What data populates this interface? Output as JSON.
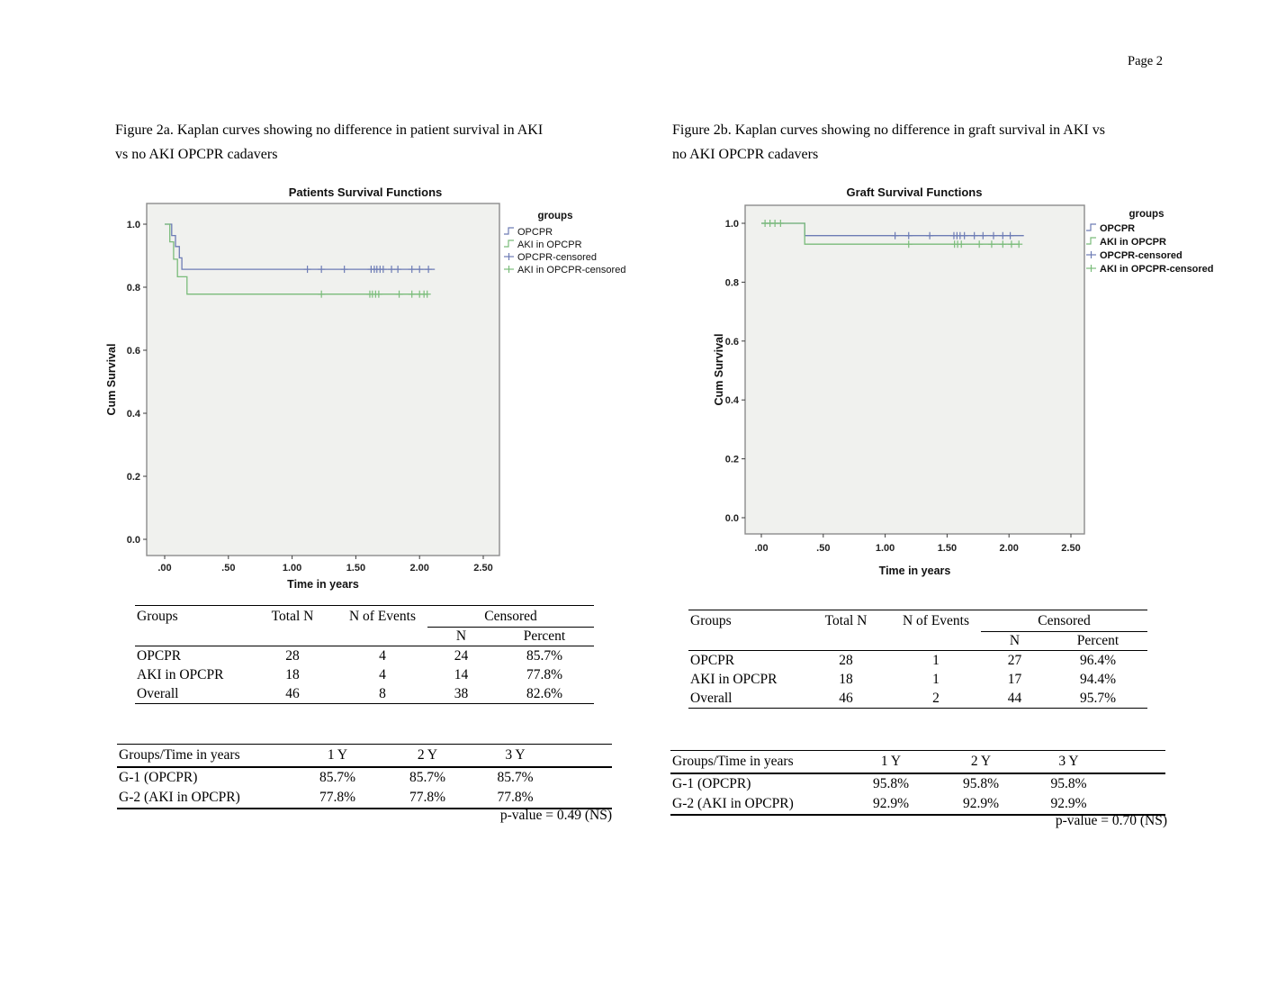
{
  "page": {
    "number_label": "Page 2"
  },
  "figures": [
    {
      "caption_line1": "Figure 2a. Kaplan curves showing no difference in patient survival in AKI",
      "caption_line2": "vs no AKI OPCPR cadavers"
    },
    {
      "caption_line1": "Figure 2b. Kaplan curves showing no difference in graft survival in AKI vs",
      "caption_line2": "no AKI OPCPR cadavers"
    }
  ],
  "colors": {
    "opcpr_line": "#6d7cb5",
    "aki_line": "#7abc7a",
    "plot_bg": "#f0f1ee",
    "plot_border": "#8c8c8c",
    "tick": "#3a3a3a"
  },
  "chart_data": [
    {
      "type": "line",
      "variant": "kaplan_meier_step",
      "title": "Patients Survival Functions",
      "xlabel": "Time in years",
      "ylabel": "Cum Survival",
      "legend_title": "groups",
      "legend_entries": [
        "OPCPR",
        "AKI in OPCPR",
        "OPCPR-censored",
        "AKI in OPCPR-censored"
      ],
      "xlim": [
        -0.15,
        2.63
      ],
      "ylim": [
        -0.05,
        1.07
      ],
      "grid": false,
      "legend_position": "right",
      "x_ticks": {
        "values": [
          0,
          0.5,
          1.0,
          1.5,
          2.0,
          2.5
        ],
        "labels": [
          ".00",
          ".50",
          "1.00",
          "1.50",
          "2.00",
          "2.50"
        ]
      },
      "y_ticks": {
        "values": [
          0,
          0.2,
          0.4,
          0.6,
          0.8,
          1.0
        ],
        "labels": [
          "0.0",
          "0.2",
          "0.4",
          "0.6",
          "0.8",
          "1.0"
        ]
      },
      "series": [
        {
          "name": "OPCPR",
          "censored_name": "OPCPR-censored",
          "color": "#6d7cb5",
          "steps": [
            [
              0,
              1
            ],
            [
              0.055,
              1
            ],
            [
              0.055,
              0.964
            ],
            [
              0.085,
              0.964
            ],
            [
              0.085,
              0.929
            ],
            [
              0.115,
              0.929
            ],
            [
              0.115,
              0.893
            ],
            [
              0.135,
              0.893
            ],
            [
              0.135,
              0.857
            ],
            [
              2.12,
              0.857
            ]
          ],
          "censored": [
            [
              1.12,
              0.857
            ],
            [
              1.23,
              0.857
            ],
            [
              1.41,
              0.857
            ],
            [
              1.62,
              0.857
            ],
            [
              1.645,
              0.857
            ],
            [
              1.665,
              0.857
            ],
            [
              1.69,
              0.857
            ],
            [
              1.715,
              0.857
            ],
            [
              1.78,
              0.857
            ],
            [
              1.83,
              0.857
            ],
            [
              1.94,
              0.857
            ],
            [
              2.0,
              0.857
            ],
            [
              2.07,
              0.857
            ]
          ]
        },
        {
          "name": "AKI in OPCPR",
          "censored_name": "AKI in OPCPR-censored",
          "color": "#7abc7a",
          "steps": [
            [
              0,
              1
            ],
            [
              0.04,
              1
            ],
            [
              0.04,
              0.944
            ],
            [
              0.07,
              0.944
            ],
            [
              0.07,
              0.889
            ],
            [
              0.1,
              0.889
            ],
            [
              0.1,
              0.833
            ],
            [
              0.175,
              0.833
            ],
            [
              0.175,
              0.778
            ],
            [
              2.06,
              0.778
            ]
          ],
          "censored": [
            [
              1.23,
              0.778
            ],
            [
              1.61,
              0.778
            ],
            [
              1.63,
              0.778
            ],
            [
              1.655,
              0.778
            ],
            [
              1.68,
              0.778
            ],
            [
              1.84,
              0.778
            ],
            [
              1.94,
              0.778
            ],
            [
              2.0,
              0.778
            ],
            [
              2.035,
              0.778
            ],
            [
              2.06,
              0.778
            ]
          ]
        }
      ]
    },
    {
      "type": "line",
      "variant": "kaplan_meier_step",
      "title": "Graft Survival Functions",
      "xlabel": "Time in years",
      "ylabel": "Cum Survival",
      "legend_title": "groups",
      "legend_entries": [
        "OPCPR",
        "AKI in OPCPR",
        "OPCPR-censored",
        "AKI in OPCPR-censored"
      ],
      "xlim": [
        -0.15,
        2.61
      ],
      "ylim": [
        -0.05,
        1.07
      ],
      "grid": false,
      "legend_position": "right",
      "x_ticks": {
        "values": [
          0,
          0.5,
          1.0,
          1.5,
          2.0,
          2.5
        ],
        "labels": [
          ".00",
          ".50",
          "1.00",
          "1.50",
          "2.00",
          "2.50"
        ]
      },
      "y_ticks": {
        "values": [
          0,
          0.2,
          0.4,
          0.6,
          0.8,
          1.0
        ],
        "labels": [
          "0.0",
          "0.2",
          "0.4",
          "0.6",
          "0.8",
          "1.0"
        ]
      },
      "series": [
        {
          "name": "OPCPR",
          "censored_name": "OPCPR-censored",
          "color": "#6d7cb5",
          "steps": [
            [
              0,
              1
            ],
            [
              0.35,
              1
            ],
            [
              0.35,
              0.958
            ],
            [
              2.12,
              0.958
            ]
          ],
          "censored": [
            [
              1.08,
              0.958
            ],
            [
              1.19,
              0.958
            ],
            [
              1.36,
              0.958
            ],
            [
              1.555,
              0.958
            ],
            [
              1.58,
              0.958
            ],
            [
              1.605,
              0.958
            ],
            [
              1.64,
              0.958
            ],
            [
              1.72,
              0.958
            ],
            [
              1.79,
              0.958
            ],
            [
              1.875,
              0.958
            ],
            [
              1.95,
              0.958
            ],
            [
              2.01,
              0.958
            ]
          ]
        },
        {
          "name": "AKI in OPCPR",
          "censored_name": "AKI in OPCPR-censored",
          "color": "#7abc7a",
          "steps": [
            [
              0,
              1
            ],
            [
              0.35,
              1
            ],
            [
              0.35,
              0.929
            ],
            [
              2.08,
              0.929
            ]
          ],
          "censored": [
            [
              0.03,
              1
            ],
            [
              0.07,
              1
            ],
            [
              0.11,
              1
            ],
            [
              0.155,
              1
            ],
            [
              1.19,
              0.929
            ],
            [
              1.56,
              0.929
            ],
            [
              1.585,
              0.929
            ],
            [
              1.615,
              0.929
            ],
            [
              1.76,
              0.929
            ],
            [
              1.86,
              0.929
            ],
            [
              1.95,
              0.929
            ],
            [
              2.02,
              0.929
            ],
            [
              2.08,
              0.929
            ]
          ]
        }
      ]
    }
  ],
  "tables": {
    "summary_headers": {
      "groups": "Groups",
      "total_n": "Total N",
      "n_of_events": "N of Events",
      "censored": "Censored",
      "n": "N",
      "percent": "Percent"
    },
    "patient_summary": {
      "rows": [
        [
          "OPCPR",
          "28",
          "4",
          "24",
          "85.7%"
        ],
        [
          "AKI in OPCPR",
          "18",
          "4",
          "14",
          "77.8%"
        ],
        [
          "Overall",
          "46",
          "8",
          "38",
          "82.6%"
        ]
      ]
    },
    "graft_summary": {
      "rows": [
        [
          "OPCPR",
          "28",
          "1",
          "27",
          "96.4%"
        ],
        [
          "AKI in OPCPR",
          "18",
          "1",
          "17",
          "94.4%"
        ],
        [
          "Overall",
          "46",
          "2",
          "44",
          "95.7%"
        ]
      ]
    },
    "years_headers": [
      "Groups/Time in years",
      "1 Y",
      "2 Y",
      "3 Y"
    ],
    "patient_years": {
      "rows": [
        [
          "G-1 (OPCPR)",
          "85.7%",
          "85.7%",
          "85.7%"
        ],
        [
          "G-2 (AKI in OPCPR)",
          "77.8%",
          "77.8%",
          "77.8%"
        ]
      ],
      "p_value": "p-value = 0.49 (NS)"
    },
    "graft_years": {
      "rows": [
        [
          "G-1 (OPCPR)",
          "95.8%",
          "95.8%",
          "95.8%"
        ],
        [
          "G-2 (AKI in OPCPR)",
          "92.9%",
          "92.9%",
          "92.9%"
        ]
      ],
      "p_value": "p-value = 0.70 (NS)"
    }
  }
}
